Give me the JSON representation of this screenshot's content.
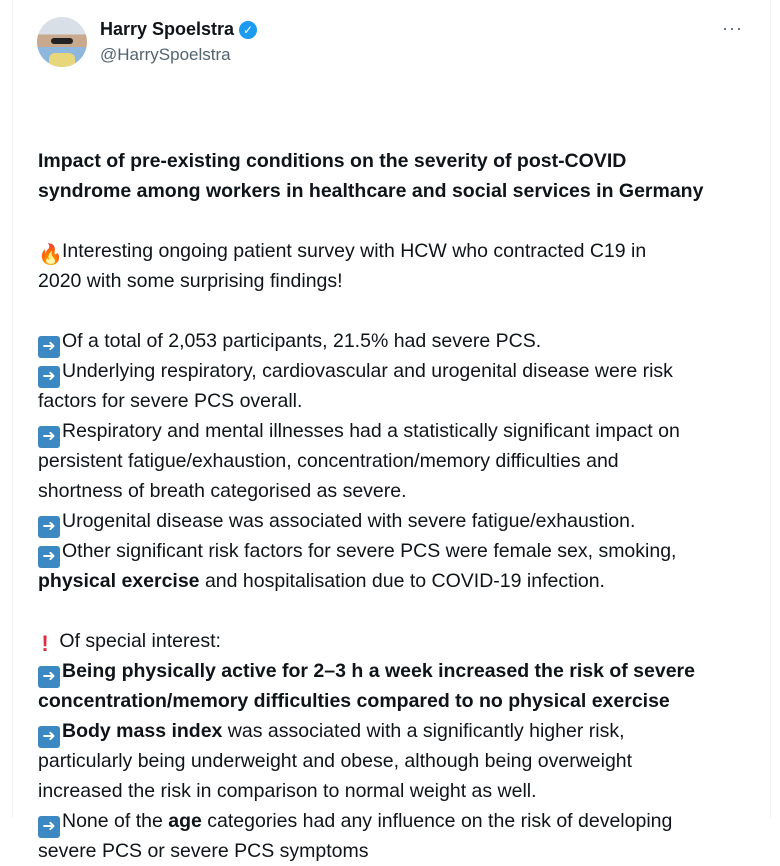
{
  "author": {
    "name": "Harry Spoelstra",
    "handle": "@HarrySpoelstra",
    "verified": true
  },
  "more_icon": "ellipsis-icon",
  "title_lines": [
    "Impact of pre-existing conditions on the severity of post-COVID",
    "syndrome among workers in healthcare and social services in Germany"
  ],
  "intro": [
    "Interesting  ongoing patient survey with HCW who contracted C19 in",
    "2020 with some surprising findings!"
  ],
  "findings": {
    "l1": "Of a total of 2,053 participants, 21.5% had severe PCS.",
    "l2a": "Underlying respiratory, cardiovascular and urogenital disease were risk",
    "l2b": "factors for severe PCS overall.",
    "l3a": "Respiratory and mental illnesses had a statistically significant impact on",
    "l3b": "persistent fatigue/exhaustion, concentration/memory difficulties and",
    "l3c": "shortness of breath categorised as severe.",
    "l4": "Urogenital disease was associated with severe fatigue/exhaustion.",
    "l5a": "Other significant risk factors for severe PCS were female sex, smoking,",
    "l5b_bold": "physical exercise",
    "l5b": " and hospitalisation due to COVID-19 infection."
  },
  "special": {
    "heading": " Of special interest:",
    "s1a_bold": "Being physically active for 2–3 h a week increased the risk of severe",
    "s1b_bold": "concentration/memory difficulties compared to no physical exercise",
    "s2a_bold": "Body mass index",
    "s2a": " was associated with a significantly higher risk,",
    "s2b": "particularly being underweight and obese, although being overweight",
    "s2c": "increased the risk in comparison to normal weight as well.",
    "s3a_pre": "None of the ",
    "s3a_bold": "age",
    "s3a": " categories had any influence on the risk of developing",
    "s3b": "severe PCS or severe PCS symptoms"
  },
  "colors": {
    "accent": "#1d9bf0",
    "text": "#0f1419",
    "secondary": "#536471"
  }
}
